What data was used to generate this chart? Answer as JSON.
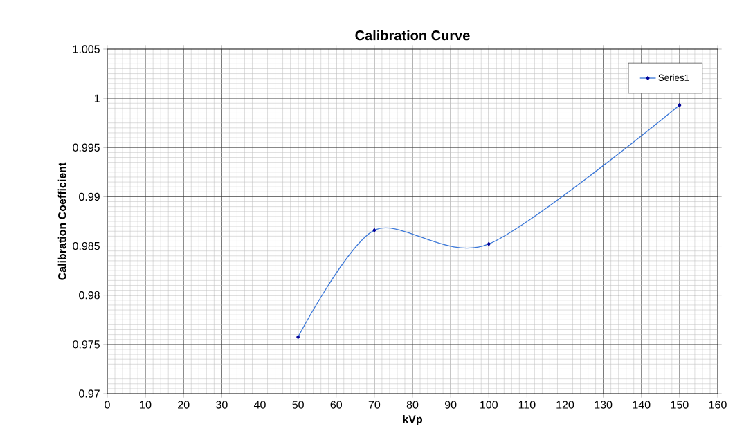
{
  "chart_data": {
    "type": "line",
    "title": "Calibration Curve",
    "xlabel": "kVp",
    "ylabel": "Calibration Coefficient",
    "x": [
      50,
      70,
      100,
      150
    ],
    "series": [
      {
        "name": "Series1",
        "color": "#3c78d8",
        "values": [
          0.97575,
          0.9866,
          0.9852,
          0.9993
        ]
      }
    ],
    "xlim": [
      0,
      160
    ],
    "xticks": [
      0,
      10,
      20,
      30,
      40,
      50,
      60,
      70,
      80,
      90,
      100,
      110,
      120,
      130,
      140,
      150,
      160
    ],
    "ylim": [
      0.97,
      1.005
    ],
    "yticks": [
      0.97,
      0.975,
      0.98,
      0.985,
      0.99,
      0.995,
      1,
      1.005
    ],
    "grid": true,
    "legend": "top right",
    "marker": "diamond",
    "line_style": "solid"
  }
}
